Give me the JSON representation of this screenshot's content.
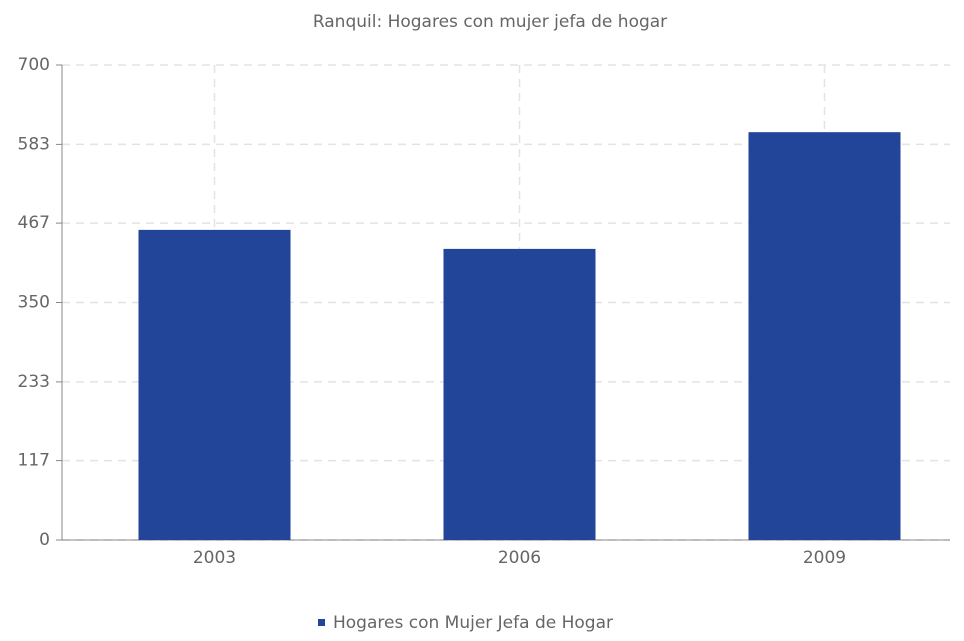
{
  "chart_data": {
    "type": "bar",
    "title": "Ranquil: Hogares con mujer jefa de hogar",
    "categories": [
      "2003",
      "2006",
      "2009"
    ],
    "series": [
      {
        "name": "Hogares con Mujer Jefa de Hogar",
        "color": "#224499",
        "values": [
          457,
          429,
          601
        ]
      }
    ],
    "ylim": [
      0,
      700
    ],
    "yticks": [
      0,
      117,
      233,
      350,
      467,
      583,
      700
    ],
    "grid": true,
    "legend": "bottom"
  }
}
